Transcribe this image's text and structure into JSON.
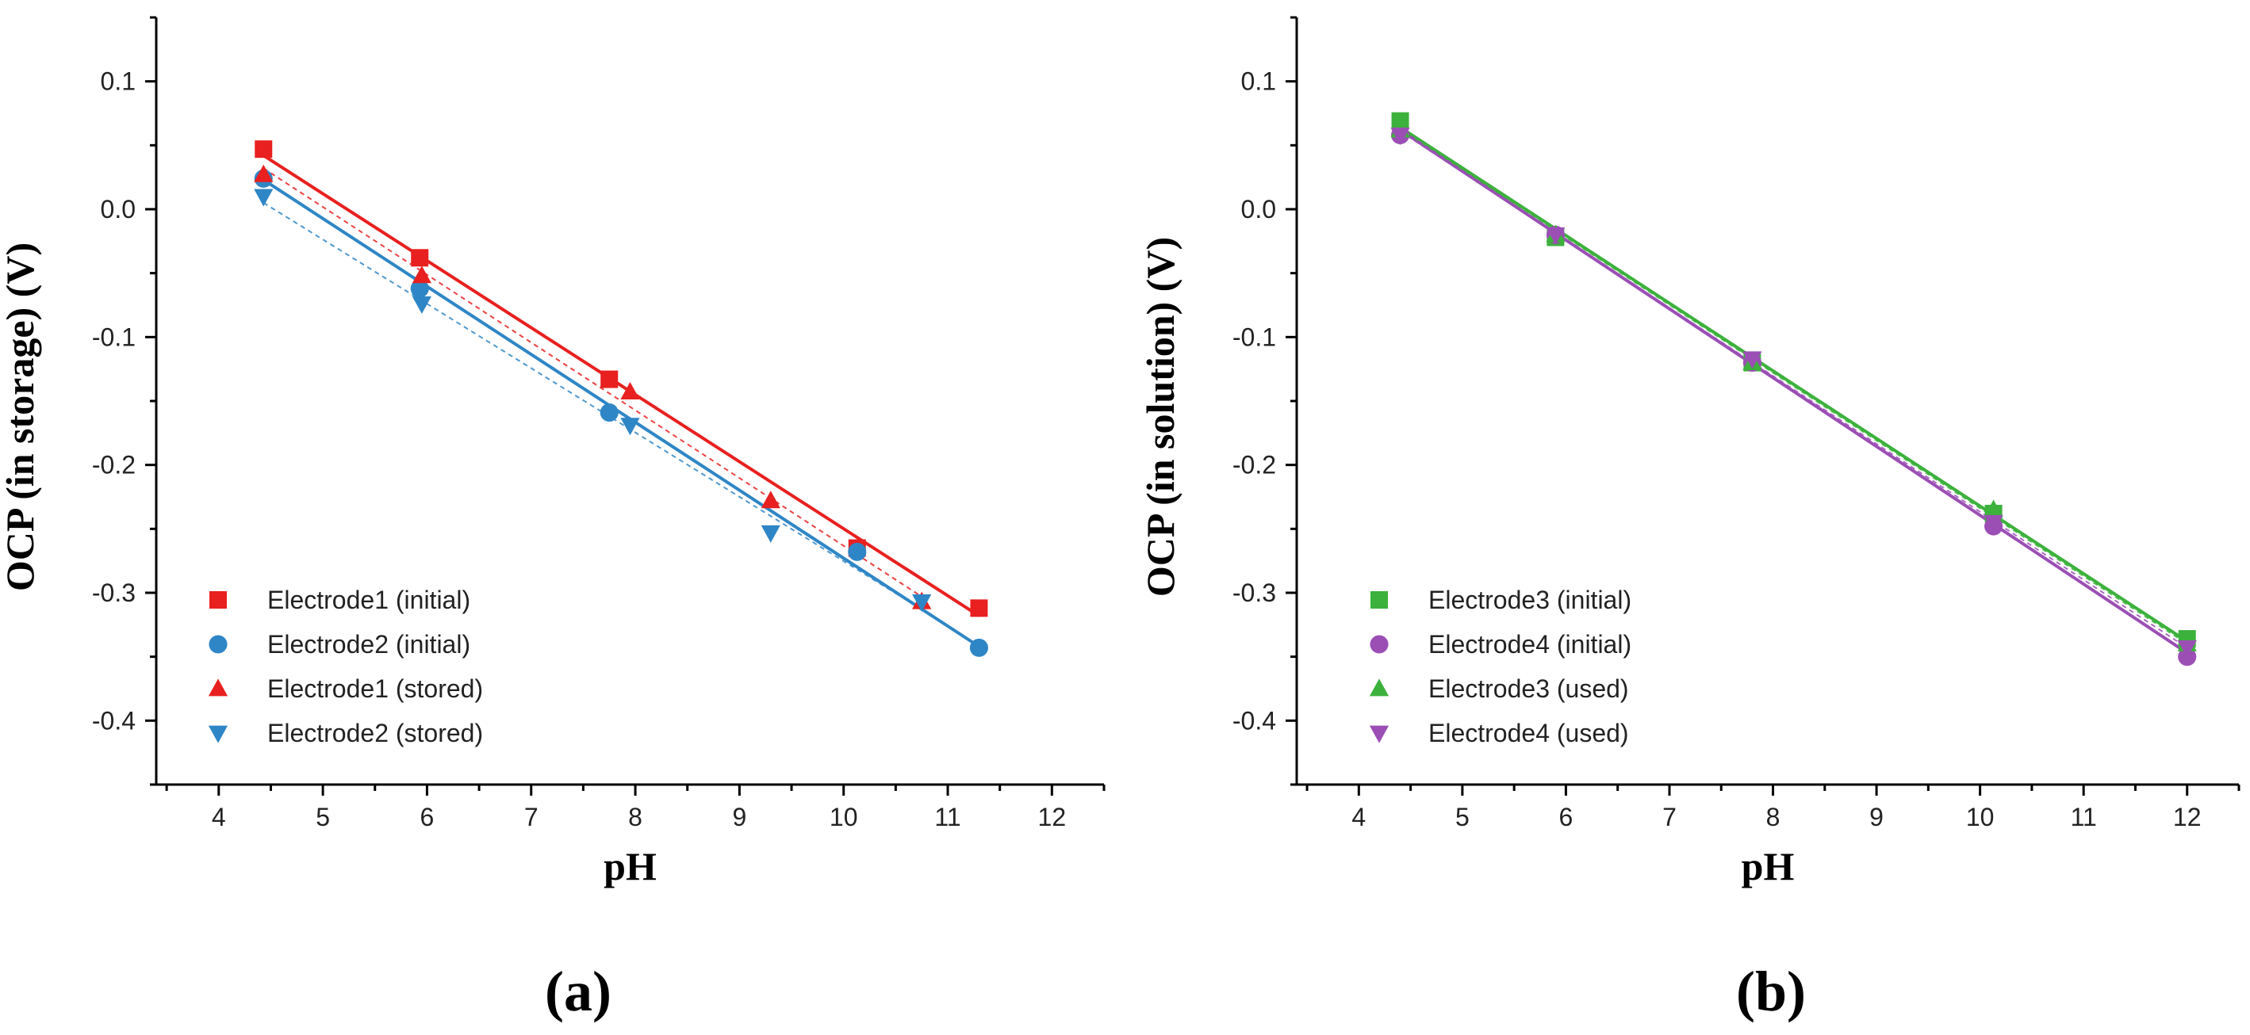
{
  "chart_data": [
    {
      "type": "scatter",
      "panel_label": "(a)",
      "xlabel": "pH",
      "ylabel": "OCP (in storage) (V)",
      "xlim": [
        3.4,
        12.5
      ],
      "ylim": [
        -0.45,
        0.15
      ],
      "xticks": [
        4,
        5,
        6,
        7,
        8,
        9,
        10,
        11,
        12
      ],
      "yticks": [
        0.1,
        0.0,
        -0.1,
        -0.2,
        -0.3,
        -0.4
      ],
      "legend_position": "bottom-left",
      "series": [
        {
          "name": "Electrode1 (initial)",
          "color": "#e8201f",
          "marker": "square",
          "line": "solid",
          "x": [
            4.43,
            5.93,
            7.75,
            10.13,
            11.3
          ],
          "y": [
            0.047,
            -0.038,
            -0.133,
            -0.265,
            -0.312
          ],
          "fit": {
            "x": [
              4.43,
              11.3
            ],
            "y": [
              0.042,
              -0.318
            ]
          }
        },
        {
          "name": "Electrode2 (initial)",
          "color": "#2f86c6",
          "marker": "circle",
          "line": "solid",
          "x": [
            4.43,
            5.93,
            7.75,
            10.13,
            11.3
          ],
          "y": [
            0.024,
            -0.062,
            -0.159,
            -0.268,
            -0.343
          ],
          "fit": {
            "x": [
              4.43,
              11.3
            ],
            "y": [
              0.023,
              -0.342
            ]
          }
        },
        {
          "name": "Electrode1 (stored)",
          "color": "#e8201f",
          "marker": "triangle-up",
          "line": "dashed",
          "x": [
            4.43,
            5.95,
            7.95,
            9.3,
            10.75
          ],
          "y": [
            0.027,
            -0.052,
            -0.143,
            -0.228,
            -0.307
          ],
          "fit": {
            "x": [
              4.43,
              10.75
            ],
            "y": [
              0.032,
              -0.303
            ]
          }
        },
        {
          "name": "Electrode2 (stored)",
          "color": "#2f86c6",
          "marker": "triangle-down",
          "line": "dashed",
          "x": [
            4.43,
            5.95,
            7.95,
            9.3,
            10.75
          ],
          "y": [
            0.01,
            -0.074,
            -0.169,
            -0.253,
            -0.307
          ],
          "fit": {
            "x": [
              4.43,
              10.75
            ],
            "y": [
              0.005,
              -0.313
            ]
          }
        }
      ]
    },
    {
      "type": "scatter",
      "panel_label": "(b)",
      "xlabel": "pH",
      "ylabel": "OCP (in solution) (V)",
      "xlim": [
        3.4,
        12.5
      ],
      "ylim": [
        -0.45,
        0.15
      ],
      "xticks": [
        4,
        5,
        6,
        7,
        8,
        9,
        10,
        11,
        12
      ],
      "yticks": [
        0.1,
        0.0,
        -0.1,
        -0.2,
        -0.3,
        -0.4
      ],
      "legend_position": "bottom-left",
      "series": [
        {
          "name": "Electrode3 (initial)",
          "color": "#3cb13c",
          "marker": "square",
          "line": "solid",
          "x": [
            4.4,
            5.9,
            7.8,
            10.13,
            12.0
          ],
          "y": [
            0.069,
            -0.022,
            -0.12,
            -0.238,
            -0.336
          ],
          "fit": {
            "x": [
              4.4,
              12.0
            ],
            "y": [
              0.064,
              -0.338
            ]
          }
        },
        {
          "name": "Electrode4 (initial)",
          "color": "#9b4fb5",
          "marker": "circle",
          "line": "solid",
          "x": [
            4.4,
            5.9,
            7.8,
            10.13,
            12.0
          ],
          "y": [
            0.058,
            -0.02,
            -0.12,
            -0.248,
            -0.35
          ],
          "fit": {
            "x": [
              4.4,
              12.0
            ],
            "y": [
              0.062,
              -0.347
            ]
          }
        },
        {
          "name": "Electrode3 (used)",
          "color": "#3cb13c",
          "marker": "triangle-up",
          "line": "dashed",
          "x": [
            4.4,
            5.9,
            7.8,
            10.13,
            12.0
          ],
          "y": [
            0.062,
            -0.02,
            -0.12,
            -0.235,
            -0.34
          ],
          "fit": {
            "x": [
              4.4,
              12.0
            ],
            "y": [
              0.063,
              -0.34
            ]
          }
        },
        {
          "name": "Electrode4 (used)",
          "color": "#9b4fb5",
          "marker": "triangle-down",
          "line": "dashed",
          "x": [
            4.4,
            5.9,
            7.8,
            10.13,
            12.0
          ],
          "y": [
            0.058,
            -0.02,
            -0.117,
            -0.245,
            -0.343
          ],
          "fit": {
            "x": [
              4.4,
              12.0
            ],
            "y": [
              0.061,
              -0.343
            ]
          }
        }
      ]
    }
  ]
}
